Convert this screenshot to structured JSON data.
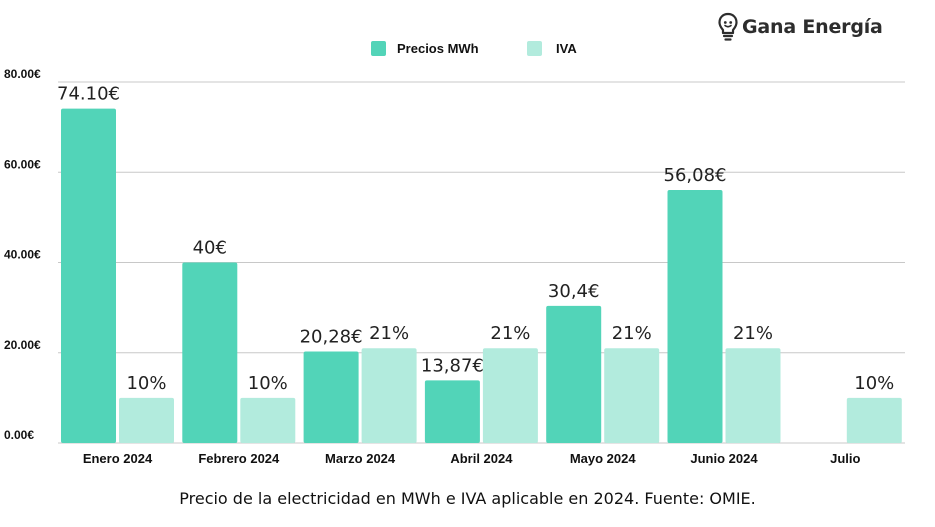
{
  "brand": {
    "name": "Gana Energía",
    "icon": "lightbulb-icon",
    "color": "#2d2d2d"
  },
  "caption": "Precio de la electricidad en MWh e IVA aplicable en 2024. Fuente: OMIE.",
  "colors": {
    "precio": "#52d4b8",
    "iva": "#b2ebdd",
    "grid": "#c8c8c8"
  },
  "chart_data": {
    "type": "bar",
    "categories": [
      "Enero 2024",
      "Febrero 2024",
      "Marzo 2024",
      "Abril 2024",
      "Mayo 2024",
      "Junio 2024",
      "Julio"
    ],
    "series": [
      {
        "name": "Precios MWh",
        "values": [
          74.1,
          40,
          20.28,
          13.87,
          30.4,
          56.08,
          null
        ],
        "labels": [
          "74.10€",
          "40€",
          "20,28€",
          "13,87€",
          "30,4€",
          "56,08€",
          ""
        ]
      },
      {
        "name": "IVA",
        "values": [
          10,
          10,
          21,
          21,
          21,
          21,
          10
        ],
        "labels": [
          "10%",
          "10%",
          "21%",
          "21%",
          "21%",
          "21%",
          "10%"
        ]
      }
    ],
    "yticks": [
      "0.00€",
      "20.00€",
      "40.00€",
      "60.00€",
      "80.00€"
    ],
    "ylim": [
      0,
      80
    ],
    "grid": true,
    "legend_position": "top-center"
  }
}
